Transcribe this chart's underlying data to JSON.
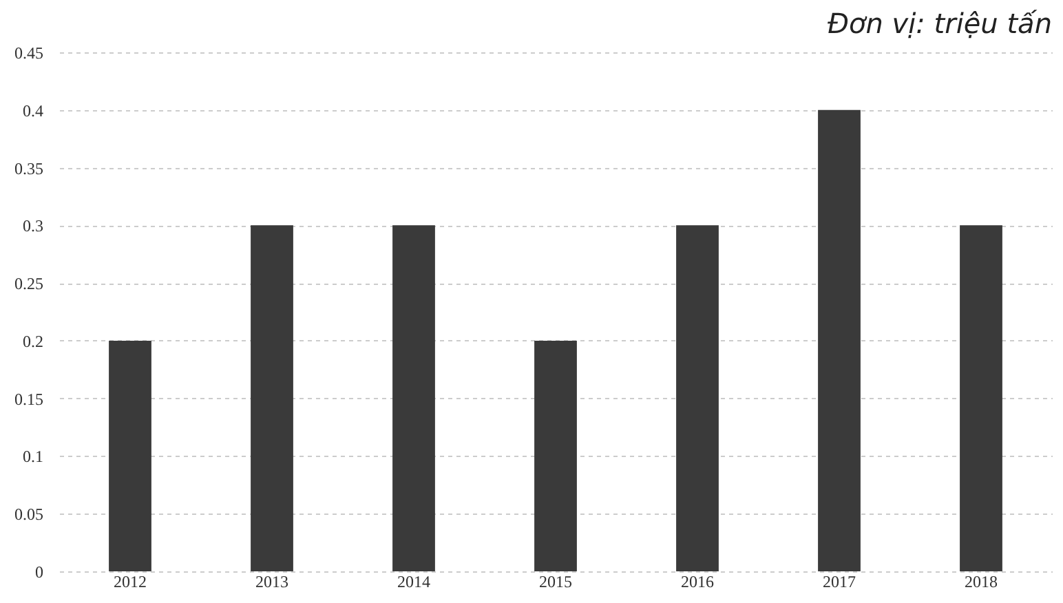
{
  "chart_data": {
    "type": "bar",
    "annotations": [
      "Đơn vị: triệu tấn"
    ],
    "categories": [
      "2012",
      "2013",
      "2014",
      "2015",
      "2016",
      "2017",
      "2018"
    ],
    "values": [
      0.2,
      0.3,
      0.3,
      0.2,
      0.3,
      0.4,
      0.3
    ],
    "color": "#3a3a3a",
    "ylim": [
      0,
      0.45
    ],
    "yticks": [
      0,
      0.05,
      0.1,
      0.15,
      0.2,
      0.25,
      0.3,
      0.35,
      0.4,
      0.45
    ],
    "grid": "y"
  }
}
